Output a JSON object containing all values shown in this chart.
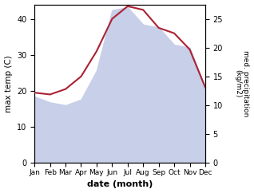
{
  "months": [
    "Jan",
    "Feb",
    "Mar",
    "Apr",
    "May",
    "Jun",
    "Jul",
    "Aug",
    "Sep",
    "Oct",
    "Nov",
    "Dec"
  ],
  "temp": [
    19.5,
    19.0,
    20.5,
    24.0,
    31.0,
    40.0,
    43.5,
    42.5,
    37.5,
    36.0,
    31.5,
    21.0
  ],
  "precip": [
    11.5,
    10.5,
    10.0,
    11.0,
    16.0,
    26.5,
    27.0,
    24.0,
    23.5,
    20.5,
    20.0,
    13.0
  ],
  "temp_color": "#aa2233",
  "precip_fill_color": "#c8cfe8",
  "ylabel_left": "max temp (C)",
  "ylabel_right": "med. precipitation\n(kg/m2)",
  "xlabel": "date (month)",
  "ylim_left": [
    0,
    44
  ],
  "ylim_right": [
    0,
    27.5
  ],
  "yticks_left": [
    0,
    10,
    20,
    30,
    40
  ],
  "yticks_right": [
    0,
    5,
    10,
    15,
    20,
    25
  ],
  "bg_color": "#ffffff"
}
